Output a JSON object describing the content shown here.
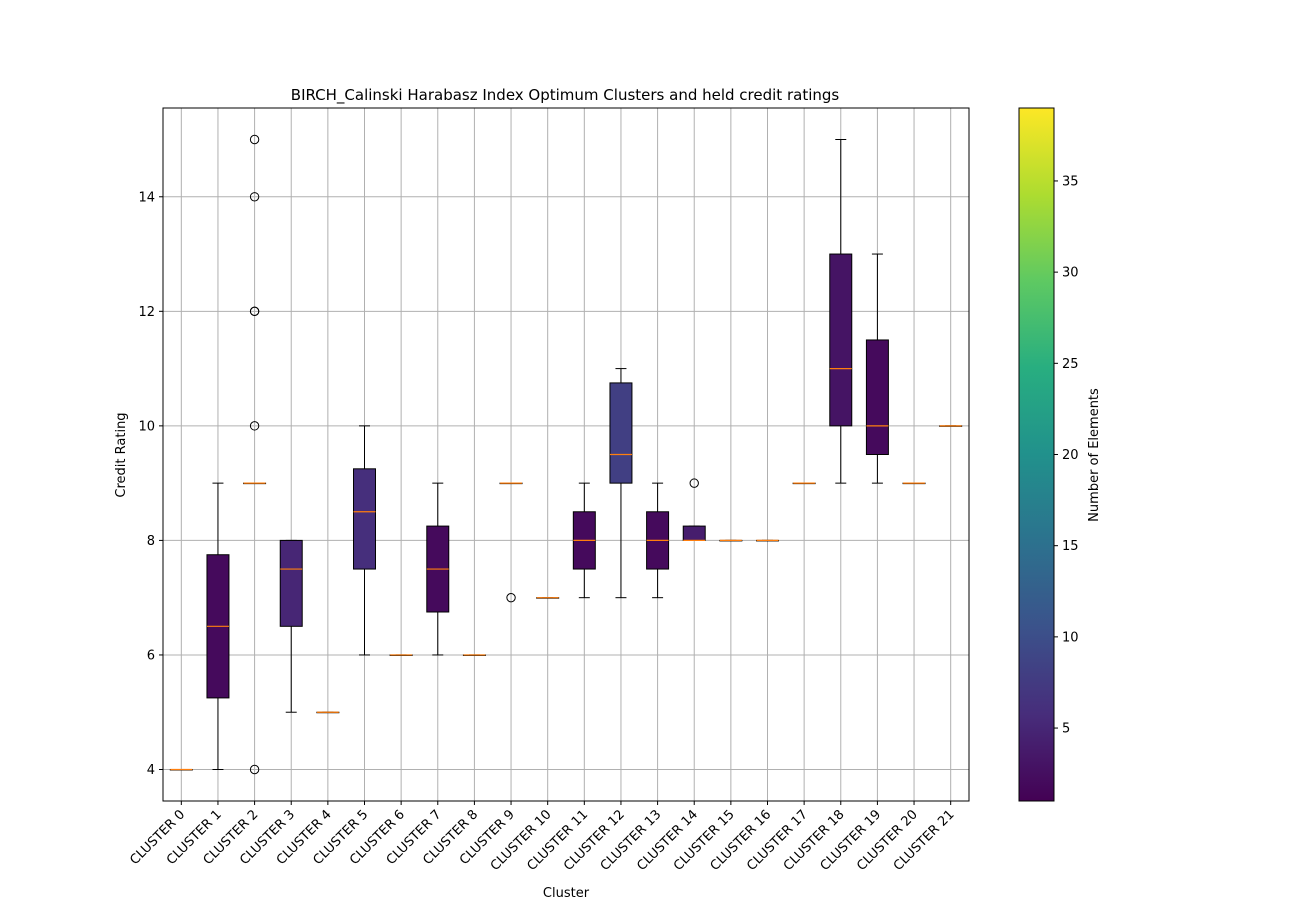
{
  "chart_data": {
    "type": "box",
    "title": "BIRCH_Calinski Harabasz Index Optimum Clusters and held credit ratings",
    "xlabel": "Cluster",
    "ylabel": "Credit Rating",
    "ylim": [
      3.45,
      15.55
    ],
    "yticks": [
      4,
      6,
      8,
      10,
      12,
      14
    ],
    "grid": true,
    "categories": [
      "CLUSTER 0",
      "CLUSTER 1",
      "CLUSTER 2",
      "CLUSTER 3",
      "CLUSTER 4",
      "CLUSTER 5",
      "CLUSTER 6",
      "CLUSTER 7",
      "CLUSTER 8",
      "CLUSTER 9",
      "CLUSTER 10",
      "CLUSTER 11",
      "CLUSTER 12",
      "CLUSTER 13",
      "CLUSTER 14",
      "CLUSTER 15",
      "CLUSTER 16",
      "CLUSTER 17",
      "CLUSTER 18",
      "CLUSTER 19",
      "CLUSTER 20",
      "CLUSTER 21"
    ],
    "boxes": [
      {
        "whislo": 4,
        "q1": 4,
        "med": 4,
        "q3": 4,
        "whishi": 4,
        "fliers": [],
        "count": 1
      },
      {
        "whislo": 4,
        "q1": 5.25,
        "med": 6.5,
        "q3": 7.75,
        "whishi": 9,
        "fliers": [],
        "count": 2
      },
      {
        "whislo": 9,
        "q1": 9,
        "med": 9,
        "q3": 9,
        "whishi": 9,
        "fliers": [
          4,
          10,
          12,
          12,
          14,
          15
        ],
        "count": 1
      },
      {
        "whislo": 5,
        "q1": 6.5,
        "med": 7.5,
        "q3": 8,
        "whishi": 8,
        "fliers": [],
        "count": 5
      },
      {
        "whislo": 5,
        "q1": 5,
        "med": 5,
        "q3": 5,
        "whishi": 5,
        "fliers": [],
        "count": 1
      },
      {
        "whislo": 6,
        "q1": 7.5,
        "med": 8.5,
        "q3": 9.25,
        "whishi": 10,
        "fliers": [],
        "count": 6
      },
      {
        "whislo": 6,
        "q1": 6,
        "med": 6,
        "q3": 6,
        "whishi": 6,
        "fliers": [],
        "count": 1
      },
      {
        "whislo": 6,
        "q1": 6.75,
        "med": 7.5,
        "q3": 8.25,
        "whishi": 9,
        "fliers": [],
        "count": 2
      },
      {
        "whislo": 6,
        "q1": 6,
        "med": 6,
        "q3": 6,
        "whishi": 6,
        "fliers": [],
        "count": 1
      },
      {
        "whislo": 9,
        "q1": 9,
        "med": 9,
        "q3": 9,
        "whishi": 9,
        "fliers": [
          7
        ],
        "count": 1
      },
      {
        "whislo": 7,
        "q1": 7,
        "med": 7,
        "q3": 7,
        "whishi": 7,
        "fliers": [],
        "count": 1
      },
      {
        "whislo": 7,
        "q1": 7.5,
        "med": 8,
        "q3": 8.5,
        "whishi": 9,
        "fliers": [],
        "count": 2
      },
      {
        "whislo": 7,
        "q1": 9,
        "med": 9.5,
        "q3": 10.75,
        "whishi": 11,
        "fliers": [],
        "count": 8
      },
      {
        "whislo": 7,
        "q1": 7.5,
        "med": 8,
        "q3": 8.5,
        "whishi": 9,
        "fliers": [],
        "count": 2
      },
      {
        "whislo": 8,
        "q1": 8,
        "med": 8,
        "q3": 8.25,
        "whishi": 8.25,
        "fliers": [
          9
        ],
        "count": 4
      },
      {
        "whislo": 8,
        "q1": 8,
        "med": 8,
        "q3": 8,
        "whishi": 8,
        "fliers": [],
        "count": 1
      },
      {
        "whislo": 8,
        "q1": 8,
        "med": 8,
        "q3": 8,
        "whishi": 8,
        "fliers": [],
        "count": 1
      },
      {
        "whislo": 9,
        "q1": 9,
        "med": 9,
        "q3": 9,
        "whishi": 9,
        "fliers": [],
        "count": 1
      },
      {
        "whislo": 9,
        "q1": 10,
        "med": 11,
        "q3": 13,
        "whishi": 15,
        "fliers": [],
        "count": 3
      },
      {
        "whislo": 9,
        "q1": 9.5,
        "med": 10,
        "q3": 11.5,
        "whishi": 13,
        "fliers": [],
        "count": 2
      },
      {
        "whislo": 9,
        "q1": 9,
        "med": 9,
        "q3": 9,
        "whishi": 9,
        "fliers": [],
        "count": 1
      },
      {
        "whislo": 10,
        "q1": 10,
        "med": 10,
        "q3": 10,
        "whishi": 10,
        "fliers": [],
        "count": 1
      }
    ],
    "colorbar": {
      "label": "Number of Elements",
      "colormap": "viridis",
      "range": [
        1,
        39
      ],
      "ticks": [
        5,
        10,
        15,
        20,
        25,
        30,
        35
      ]
    },
    "colors": {
      "median": "#ff7f0e",
      "grid": "#b0b0b0",
      "whisker": "#000000"
    }
  }
}
